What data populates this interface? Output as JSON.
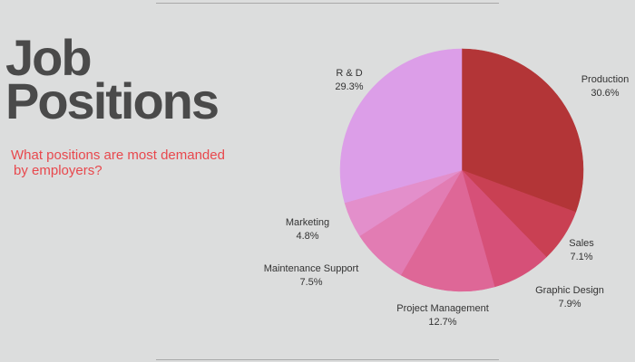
{
  "page": {
    "title_line1": "Job",
    "title_line2": "Positions",
    "subtitle_line1": "What positions are most demanded",
    "subtitle_line2": "by employers?"
  },
  "chart_data": {
    "type": "pie",
    "title": "Job Positions",
    "subtitle": "What positions are most demanded by employers?",
    "legend": "none",
    "slices": [
      {
        "name": "Production",
        "value": 30.6,
        "label": "30.6%",
        "color": "#b33537"
      },
      {
        "name": "Sales",
        "value": 7.1,
        "label": "7.1%",
        "color": "#c94053"
      },
      {
        "name": "Graphic Design",
        "value": 7.9,
        "label": "7.9%",
        "color": "#d65078"
      },
      {
        "name": "Project Management",
        "value": 12.7,
        "label": "12.7%",
        "color": "#de6797"
      },
      {
        "name": "Maintenance Support",
        "value": 7.5,
        "label": "7.5%",
        "color": "#e27cb3"
      },
      {
        "name": "Marketing",
        "value": 4.8,
        "label": "4.8%",
        "color": "#e38fcb"
      },
      {
        "name": "R & D",
        "value": 29.3,
        "label": "29.3%",
        "color": "#dc9ee8"
      }
    ]
  }
}
